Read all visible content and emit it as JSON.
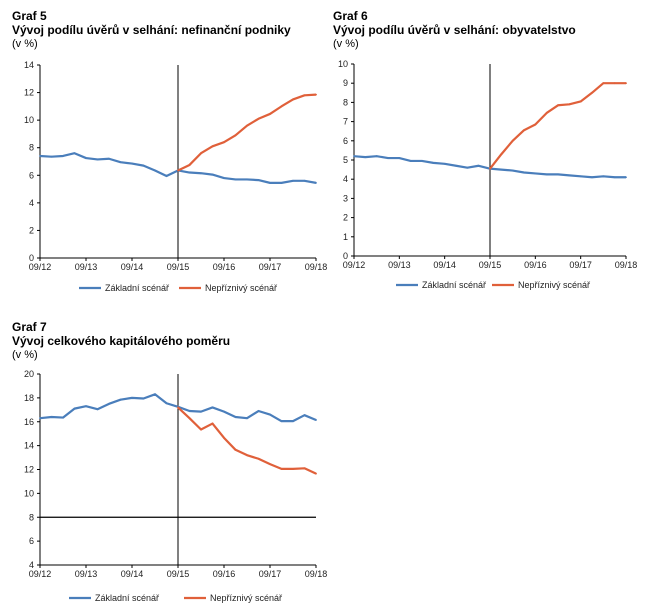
{
  "colors": {
    "baseline": "#4a7ebb",
    "adverse": "#e0603a",
    "axis": "#000000",
    "grid": "#d0d0d0"
  },
  "chart_data": [
    {
      "type": "line",
      "label": "Graf 5",
      "title": "Vývoj podílu úvěrů v selhání: nefinanční podniky",
      "unit": "(v %)",
      "xlabel": "",
      "ylabel": "",
      "x_ticks": [
        "09/12",
        "09/13",
        "09/14",
        "09/15",
        "09/16",
        "09/17",
        "09/18"
      ],
      "ylim": [
        0,
        14
      ],
      "y_ticks": [
        0,
        2,
        4,
        6,
        8,
        10,
        12,
        14
      ],
      "vline_x": 12,
      "grid": false,
      "legend_position": "bottom",
      "series": [
        {
          "name": "Základní scénář",
          "color_key": "baseline",
          "x": [
            0,
            1,
            2,
            3,
            4,
            5,
            6,
            7,
            8,
            9,
            10,
            11,
            12,
            13,
            14,
            15,
            16,
            17,
            18,
            19,
            20,
            21,
            22,
            23,
            24
          ],
          "values": [
            7.4,
            7.35,
            7.4,
            7.6,
            7.25,
            7.15,
            7.2,
            6.95,
            6.85,
            6.7,
            6.35,
            5.95,
            6.35,
            6.2,
            6.15,
            6.05,
            5.8,
            5.7,
            5.7,
            5.65,
            5.45,
            5.45,
            5.6,
            5.6,
            5.45
          ]
        },
        {
          "name": "Nepříznivý scénář",
          "color_key": "adverse",
          "x": [
            12,
            13,
            14,
            15,
            16,
            17,
            18,
            19,
            20,
            21,
            22,
            23,
            24
          ],
          "values": [
            6.35,
            6.75,
            7.6,
            8.1,
            8.4,
            8.9,
            9.6,
            10.1,
            10.45,
            11.0,
            11.5,
            11.8,
            11.85
          ]
        }
      ]
    },
    {
      "type": "line",
      "label": "Graf 6",
      "title": "Vývoj podílu úvěrů v selhání: obyvatelstvo",
      "unit": "(v %)",
      "xlabel": "",
      "ylabel": "",
      "x_ticks": [
        "09/12",
        "09/13",
        "09/14",
        "09/15",
        "09/16",
        "09/17",
        "09/18"
      ],
      "ylim": [
        0,
        10
      ],
      "y_ticks": [
        0,
        1,
        2,
        3,
        4,
        5,
        6,
        7,
        8,
        9,
        10
      ],
      "vline_x": 12,
      "grid": false,
      "legend_position": "bottom",
      "series": [
        {
          "name": "Základní scénář",
          "color_key": "baseline",
          "x": [
            0,
            1,
            2,
            3,
            4,
            5,
            6,
            7,
            8,
            9,
            10,
            11,
            12,
            13,
            14,
            15,
            16,
            17,
            18,
            19,
            20,
            21,
            22,
            23,
            24
          ],
          "values": [
            5.2,
            5.15,
            5.2,
            5.1,
            5.1,
            4.95,
            4.95,
            4.85,
            4.8,
            4.7,
            4.6,
            4.7,
            4.55,
            4.5,
            4.45,
            4.35,
            4.3,
            4.25,
            4.25,
            4.2,
            4.15,
            4.1,
            4.15,
            4.1,
            4.1
          ]
        },
        {
          "name": "Nepříznivý scénář",
          "color_key": "adverse",
          "x": [
            12,
            13,
            14,
            15,
            16,
            17,
            18,
            19,
            20,
            21,
            22,
            23,
            24
          ],
          "values": [
            4.55,
            5.3,
            6.0,
            6.55,
            6.85,
            7.45,
            7.85,
            7.9,
            8.05,
            8.5,
            9.0,
            9.0,
            9.0
          ]
        }
      ]
    },
    {
      "type": "line",
      "label": "Graf 7",
      "title": "Vývoj celkového kapitálového poměru",
      "unit": "(v %)",
      "xlabel": "",
      "ylabel": "",
      "x_ticks": [
        "09/12",
        "09/13",
        "09/14",
        "09/15",
        "09/16",
        "09/17",
        "09/18"
      ],
      "ylim": [
        4,
        20
      ],
      "y_ticks": [
        4,
        6,
        8,
        10,
        12,
        14,
        16,
        18,
        20
      ],
      "vline_x": 12,
      "hline_y": 8,
      "grid": false,
      "legend_position": "bottom",
      "series": [
        {
          "name": "Základní scénář",
          "color_key": "baseline",
          "x": [
            0,
            1,
            2,
            3,
            4,
            5,
            6,
            7,
            8,
            9,
            10,
            11,
            12,
            13,
            14,
            15,
            16,
            17,
            18,
            19,
            20,
            21,
            22,
            23,
            24
          ],
          "values": [
            16.3,
            16.4,
            16.35,
            17.1,
            17.3,
            17.05,
            17.5,
            17.85,
            18.0,
            17.95,
            18.3,
            17.55,
            17.25,
            16.9,
            16.85,
            17.2,
            16.85,
            16.4,
            16.3,
            16.9,
            16.6,
            16.05,
            16.05,
            16.55,
            16.15
          ]
        },
        {
          "name": "Nepříznivý scénář",
          "color_key": "adverse",
          "x": [
            12,
            13,
            14,
            15,
            16,
            17,
            18,
            19,
            20,
            21,
            22,
            23,
            24
          ],
          "values": [
            17.2,
            16.3,
            15.35,
            15.85,
            14.65,
            13.65,
            13.2,
            12.9,
            12.45,
            12.05,
            12.05,
            12.1,
            11.65
          ]
        }
      ]
    }
  ]
}
